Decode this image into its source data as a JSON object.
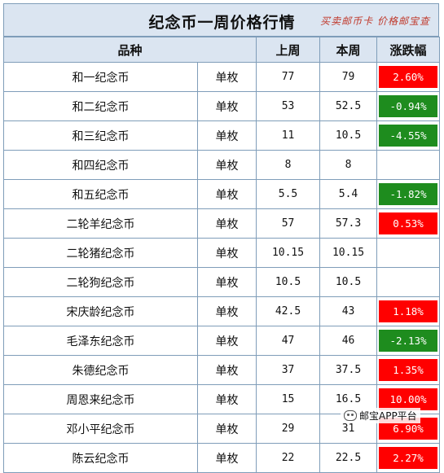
{
  "header": {
    "title": "纪念币一周价格行情",
    "watermark": "买卖邮币卡 价格邮宝查"
  },
  "columns": [
    "品种",
    "上周",
    "本周",
    "涨跌幅"
  ],
  "rows": [
    {
      "name": "和一纪念币",
      "unit": "单枚",
      "last": "77",
      "this": "79",
      "change": "2.60%",
      "trend": "up"
    },
    {
      "name": "和二纪念币",
      "unit": "单枚",
      "last": "53",
      "this": "52.5",
      "change": "-0.94%",
      "trend": "down"
    },
    {
      "name": "和三纪念币",
      "unit": "单枚",
      "last": "11",
      "this": "10.5",
      "change": "-4.55%",
      "trend": "down"
    },
    {
      "name": "和四纪念币",
      "unit": "单枚",
      "last": "8",
      "this": "8",
      "change": "",
      "trend": "flat"
    },
    {
      "name": "和五纪念币",
      "unit": "单枚",
      "last": "5.5",
      "this": "5.4",
      "change": "-1.82%",
      "trend": "down"
    },
    {
      "name": "二轮羊纪念币",
      "unit": "单枚",
      "last": "57",
      "this": "57.3",
      "change": "0.53%",
      "trend": "up"
    },
    {
      "name": "二轮猪纪念币",
      "unit": "单枚",
      "last": "10.15",
      "this": "10.15",
      "change": "",
      "trend": "flat"
    },
    {
      "name": "二轮狗纪念币",
      "unit": "单枚",
      "last": "10.5",
      "this": "10.5",
      "change": "",
      "trend": "flat"
    },
    {
      "name": "宋庆龄纪念币",
      "unit": "单枚",
      "last": "42.5",
      "this": "43",
      "change": "1.18%",
      "trend": "up"
    },
    {
      "name": "毛泽东纪念币",
      "unit": "单枚",
      "last": "47",
      "this": "46",
      "change": "-2.13%",
      "trend": "down"
    },
    {
      "name": "朱德纪念币",
      "unit": "单枚",
      "last": "37",
      "this": "37.5",
      "change": "1.35%",
      "trend": "up"
    },
    {
      "name": "周恩来纪念币",
      "unit": "单枚",
      "last": "15",
      "this": "16.5",
      "change": "10.00%",
      "trend": "up"
    },
    {
      "name": "邓小平纪念币",
      "unit": "单枚",
      "last": "29",
      "this": "31",
      "change": "6.90%",
      "trend": "up"
    },
    {
      "name": "陈云纪念币",
      "unit": "单枚",
      "last": "22",
      "this": "22.5",
      "change": "2.27%",
      "trend": "up"
    }
  ],
  "colors": {
    "up": "#ff0000",
    "down": "#1e8c1e",
    "flat": "#ffffff"
  },
  "footer_badge": {
    "icon": "wechat-bubble-icon",
    "text": "邮宝APP平台"
  }
}
